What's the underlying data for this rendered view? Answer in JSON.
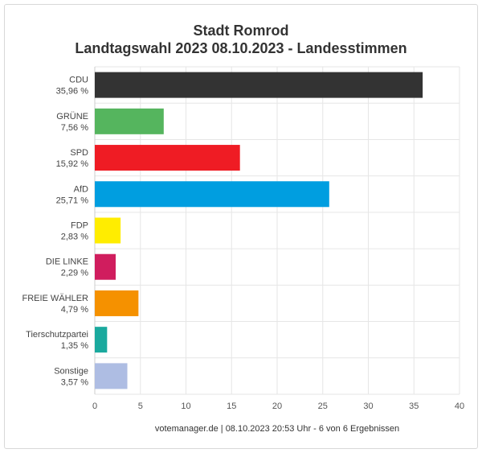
{
  "chart_data": {
    "type": "bar",
    "orientation": "horizontal",
    "title": "Stadt Romrod",
    "subtitle": "Landtagswahl 2023 08.10.2023  - Landesstimmen",
    "categories": [
      "CDU",
      "GRÜNE",
      "SPD",
      "AfD",
      "FDP",
      "DIE LINKE",
      "FREIE WÄHLER",
      "Tierschutzpartei",
      "Sonstige"
    ],
    "value_labels": [
      "35,96 %",
      "7,56 %",
      "15,92 %",
      "25,71 %",
      "2,83 %",
      "2,29 %",
      "4,79 %",
      "1,35 %",
      "3,57 %"
    ],
    "values": [
      35.96,
      7.56,
      15.92,
      25.71,
      2.83,
      2.29,
      4.79,
      1.35,
      3.57
    ],
    "colors": [
      "#333333",
      "#55b55e",
      "#ef1c24",
      "#009ee0",
      "#ffed00",
      "#d01d5e",
      "#f59100",
      "#1aa99e",
      "#aebde3"
    ],
    "xlim": [
      0,
      40
    ],
    "xticks": [
      "0",
      "5",
      "10",
      "15",
      "20",
      "25",
      "30",
      "35",
      "40"
    ],
    "grid": true,
    "footer": "votemanager.de | 08.10.2023 20:53 Uhr - 6 von 6 Ergebnissen"
  }
}
